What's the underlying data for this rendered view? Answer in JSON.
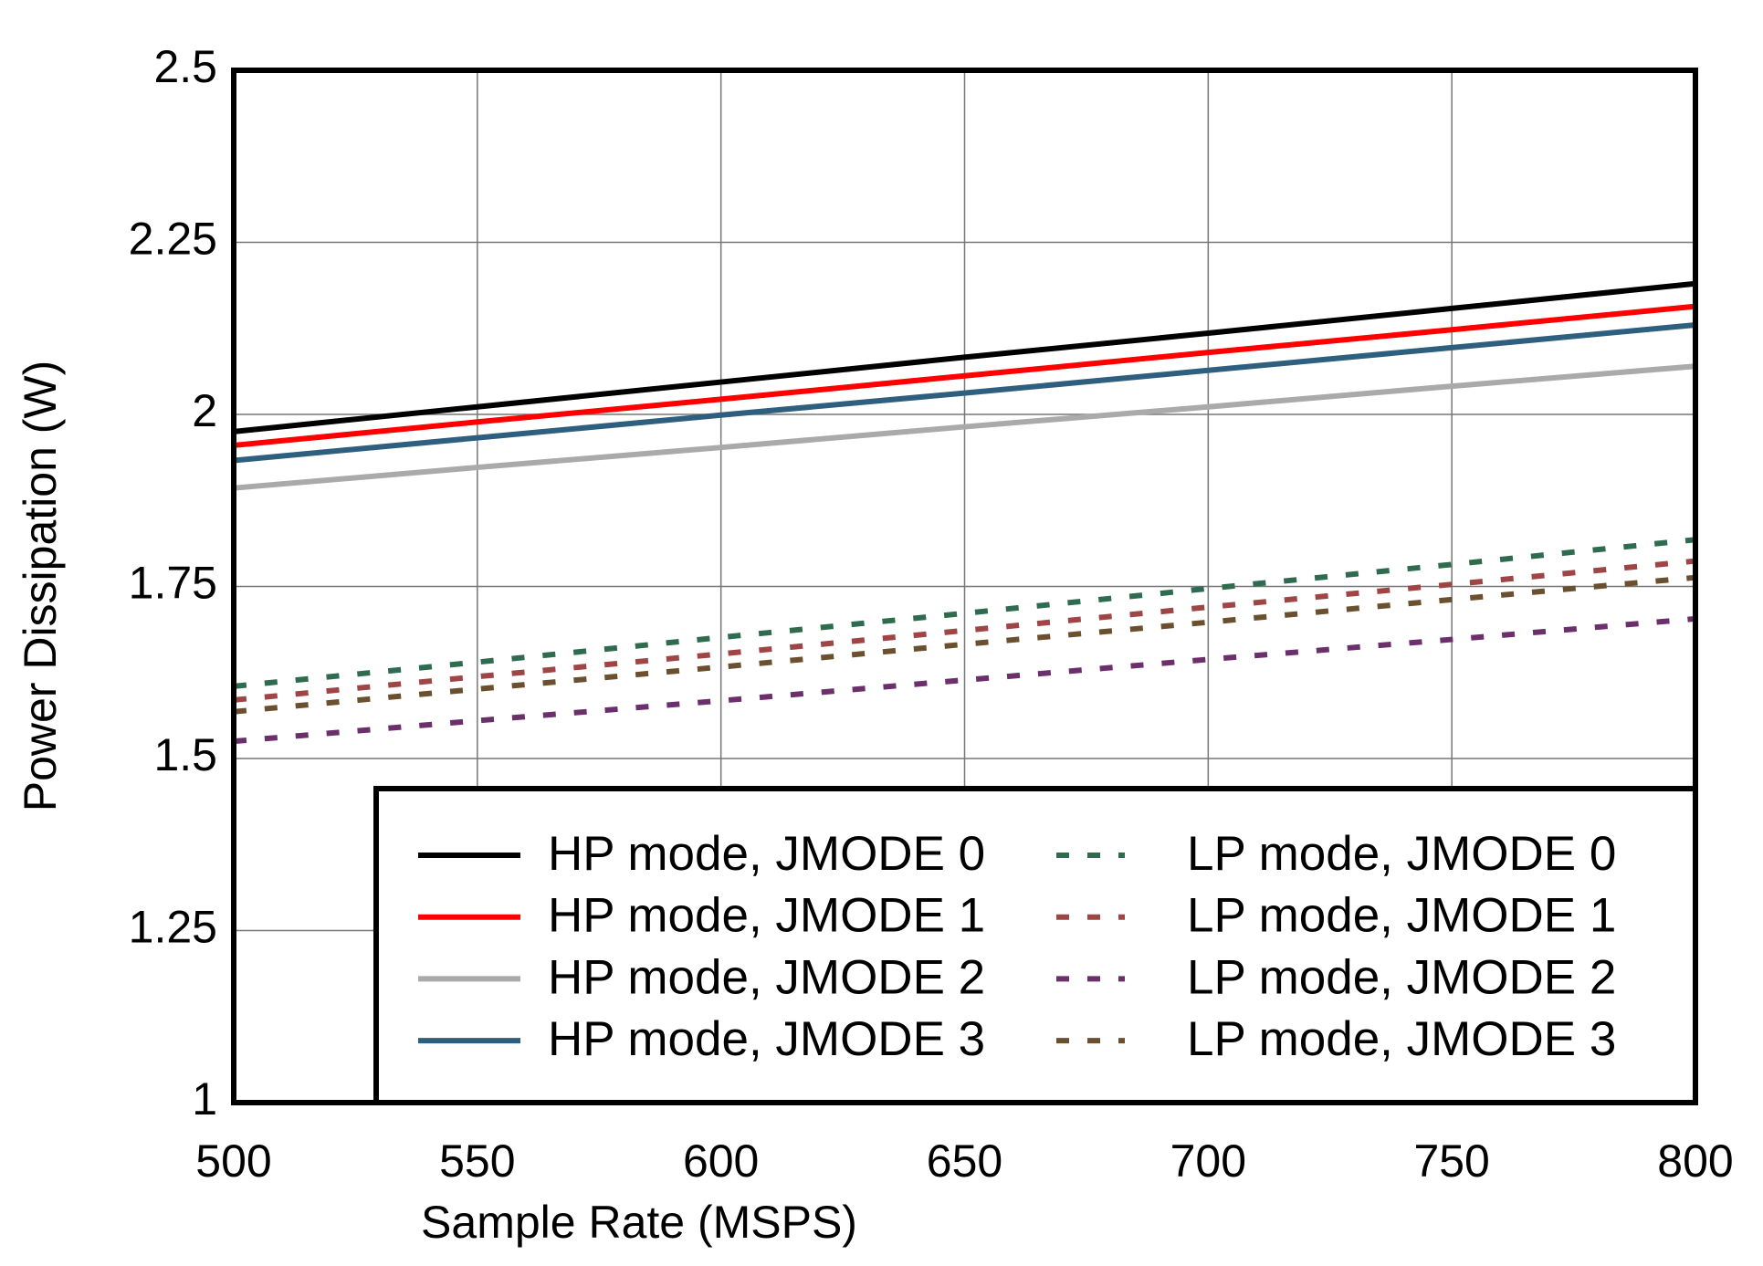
{
  "chart_data": {
    "type": "line",
    "xlabel": "Sample Rate (MSPS)",
    "ylabel": "Power Dissipation (W)",
    "x": [
      500,
      550,
      600,
      650,
      700,
      750,
      800
    ],
    "xlim": [
      500,
      800
    ],
    "xticks": [
      500,
      550,
      600,
      650,
      700,
      750,
      800
    ],
    "ylim": [
      1,
      2.5
    ],
    "yticks": [
      1,
      1.25,
      1.5,
      1.75,
      2,
      2.25,
      2.5
    ],
    "grid": true,
    "legend": "lower right",
    "series": [
      {
        "name": "HP mode, JMODE 0",
        "color": "#000000",
        "dashed": false,
        "values": [
          1.975,
          2.011,
          2.047,
          2.083,
          2.118,
          2.154,
          2.19
        ]
      },
      {
        "name": "HP mode, JMODE 1",
        "color": "#ff0000",
        "dashed": false,
        "values": [
          1.955,
          1.989,
          2.022,
          2.056,
          2.09,
          2.123,
          2.157
        ]
      },
      {
        "name": "HP mode, JMODE 2",
        "color": "#aaaaaa",
        "dashed": false,
        "values": [
          1.893,
          1.923,
          1.952,
          1.982,
          2.011,
          2.041,
          2.07
        ]
      },
      {
        "name": "HP mode, JMODE 3",
        "color": "#2f5f7f",
        "dashed": false,
        "values": [
          1.933,
          1.966,
          1.999,
          2.031,
          2.064,
          2.097,
          2.13
        ]
      },
      {
        "name": "LP mode, JMODE 0",
        "color": "#2e6b4f",
        "dashed": true,
        "values": [
          1.605,
          1.64,
          1.676,
          1.711,
          1.747,
          1.782,
          1.818
        ]
      },
      {
        "name": "LP mode, JMODE 1",
        "color": "#a04545",
        "dashed": true,
        "values": [
          1.585,
          1.619,
          1.652,
          1.686,
          1.72,
          1.753,
          1.787
        ]
      },
      {
        "name": "LP mode, JMODE 2",
        "color": "#6b2f6b",
        "dashed": true,
        "values": [
          1.525,
          1.555,
          1.584,
          1.614,
          1.644,
          1.673,
          1.703
        ]
      },
      {
        "name": "LP mode, JMODE 3",
        "color": "#6b5030",
        "dashed": true,
        "values": [
          1.568,
          1.601,
          1.633,
          1.666,
          1.698,
          1.731,
          1.763
        ]
      }
    ]
  }
}
